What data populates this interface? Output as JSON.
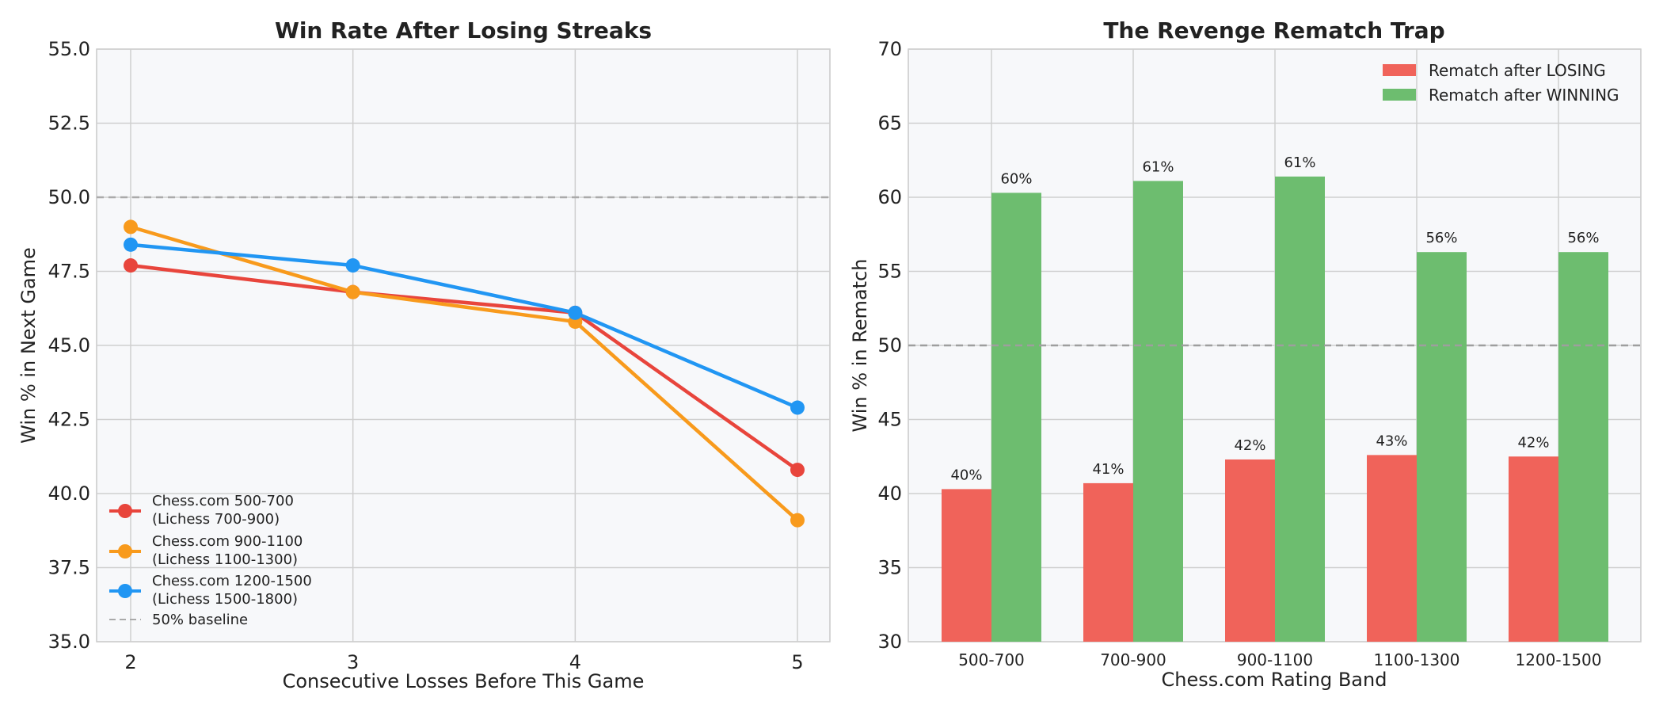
{
  "chart_data": [
    {
      "type": "line",
      "title": "Win Rate After Losing Streaks",
      "xlabel": "Consecutive Losses Before This Game",
      "ylabel": "Win % in Next Game",
      "x": [
        2,
        3,
        4,
        5
      ],
      "xticks": [
        "2",
        "3",
        "4",
        "5"
      ],
      "ylim": [
        35.0,
        55.0
      ],
      "yticks": [
        "35.0",
        "37.5",
        "40.0",
        "42.5",
        "45.0",
        "47.5",
        "50.0",
        "52.5",
        "55.0"
      ],
      "grid": true,
      "legend_position": "lower-left",
      "series": [
        {
          "name_line1": "Chess.com 500-700",
          "name_line2": "(Lichess 700-900)",
          "color": "#e8453c",
          "values": [
            47.7,
            46.8,
            46.1,
            40.8
          ]
        },
        {
          "name_line1": "Chess.com 900-1100",
          "name_line2": "(Lichess 1100-1300)",
          "color": "#f89a1c",
          "values": [
            49.0,
            46.8,
            45.8,
            39.1
          ]
        },
        {
          "name_line1": "Chess.com 1200-1500",
          "name_line2": "(Lichess 1500-1800)",
          "color": "#2196f3",
          "values": [
            48.4,
            47.7,
            46.1,
            42.9
          ]
        }
      ],
      "baseline": {
        "value": 50.0,
        "label": "50% baseline",
        "color": "#aaaaaa"
      }
    },
    {
      "type": "bar",
      "title": "The Revenge Rematch Trap",
      "xlabel": "Chess.com Rating Band",
      "ylabel": "Win % in Rematch",
      "categories": [
        "500-700",
        "700-900",
        "900-1100",
        "1100-1300",
        "1200-1500"
      ],
      "ylim": [
        30,
        70
      ],
      "yticks": [
        "30",
        "35",
        "40",
        "45",
        "50",
        "55",
        "60",
        "65",
        "70"
      ],
      "grid": true,
      "legend_position": "top-right",
      "series": [
        {
          "name": "Rematch after LOSING",
          "color": "#f0635a",
          "values": [
            40.3,
            40.7,
            42.3,
            42.6,
            42.5
          ],
          "labels": [
            "40%",
            "41%",
            "42%",
            "43%",
            "42%"
          ]
        },
        {
          "name": "Rematch after WINNING",
          "color": "#6dbd6f",
          "values": [
            60.3,
            61.1,
            61.4,
            56.3,
            56.3
          ],
          "labels": [
            "60%",
            "61%",
            "61%",
            "56%",
            "56%"
          ]
        }
      ],
      "baseline": {
        "value": 50
      }
    }
  ]
}
